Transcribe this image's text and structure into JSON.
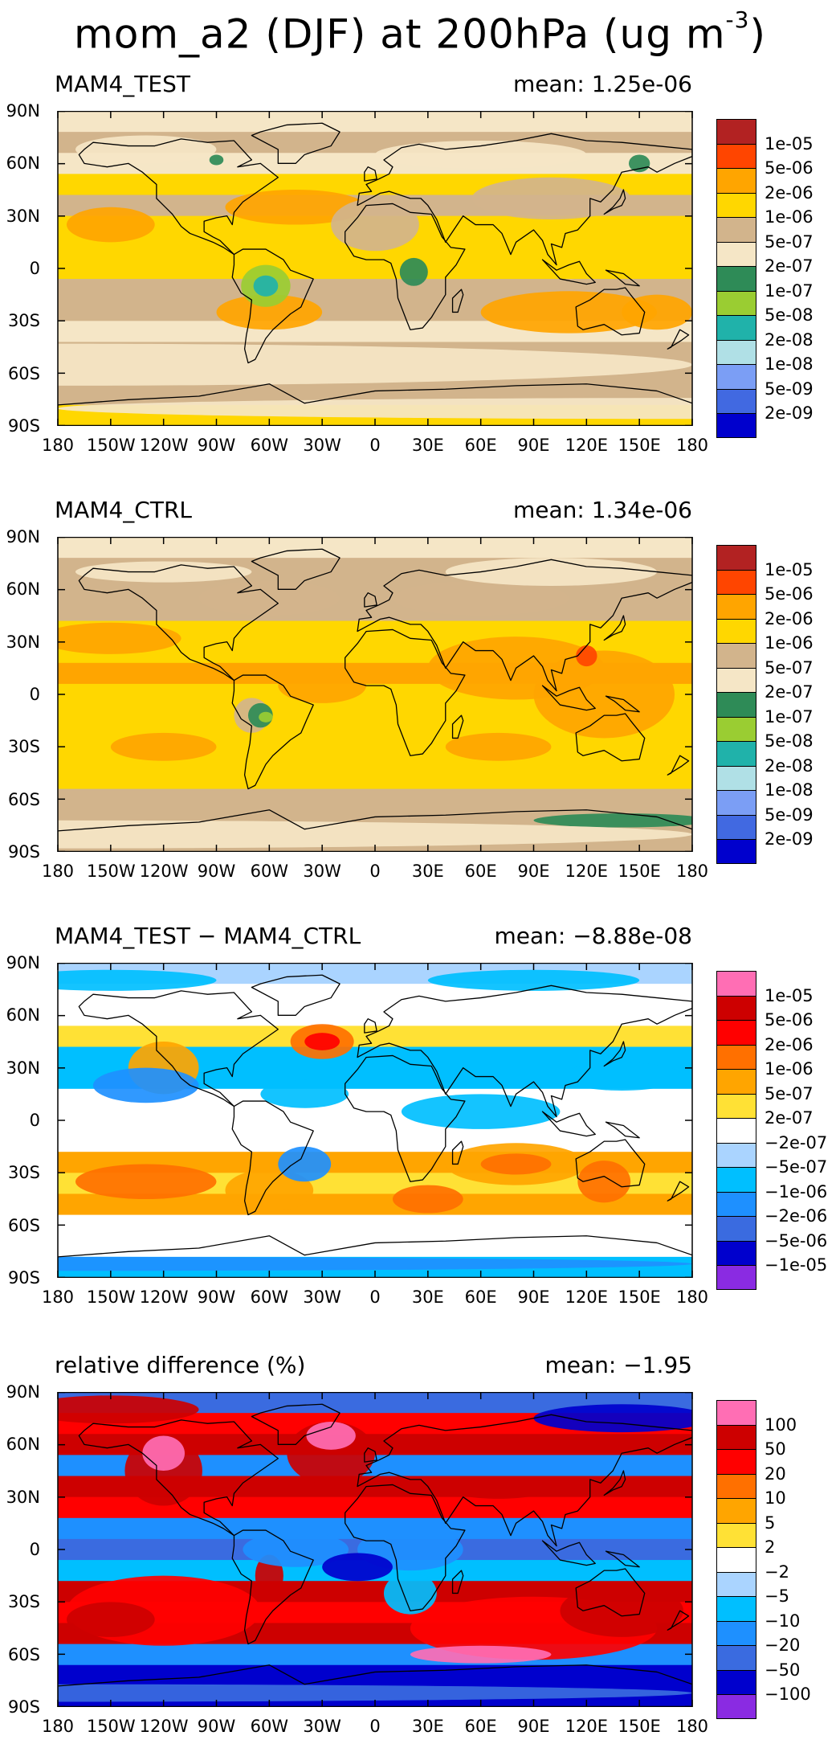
{
  "title": {
    "main": "mom_a2 (DJF) at 200hPa (ug m",
    "sup": "-3",
    "close": ")"
  },
  "axes": {
    "y_ticks": [
      "90N",
      "60N",
      "30N",
      "0",
      "30S",
      "60S",
      "90S"
    ],
    "x_ticks": [
      "180",
      "150W",
      "120W",
      "90W",
      "60W",
      "30W",
      "0",
      "30E",
      "60E",
      "90E",
      "120E",
      "150E",
      "180"
    ]
  },
  "colors": {
    "conc_palette": [
      "#b22222",
      "#ff4500",
      "#ffa500",
      "#ffd700",
      "#d2b48c",
      "#f5e6c6",
      "#2e8b57",
      "#9acd32",
      "#20b2aa",
      "#b0e0e6",
      "#7b9ef5",
      "#4169e1",
      "#0000cd"
    ],
    "diff_palette": [
      "#ff6eb4",
      "#cd0000",
      "#ff0000",
      "#ff7000",
      "#ffa500",
      "#ffe135",
      "#ffffff",
      "#aad4ff",
      "#00bfff",
      "#1e90ff",
      "#3a6be0",
      "#0000cd",
      "#8a2be2"
    ]
  },
  "chart_data": [
    {
      "type": "heatmap",
      "panel": "MAM4_TEST",
      "title": "MAM4_TEST",
      "mean_label": "mean:",
      "mean_value": "1.25e-06",
      "mean": 1.25e-06,
      "xlim": [
        -180,
        180
      ],
      "ylim": [
        -90,
        90
      ],
      "legend_labels": [
        "1e-05",
        "5e-06",
        "2e-06",
        "1e-06",
        "5e-07",
        "2e-07",
        "1e-07",
        "5e-08",
        "2e-08",
        "1e-08",
        "5e-09",
        "2e-09"
      ],
      "zonal_levels": [
        5,
        4,
        5,
        3,
        4,
        3,
        3,
        3,
        4,
        4,
        5,
        4,
        4,
        4,
        3
      ]
    },
    {
      "type": "heatmap",
      "panel": "MAM4_CTRL",
      "title": "MAM4_CTRL",
      "mean_label": "mean:",
      "mean_value": "1.34e-06",
      "mean": 1.34e-06,
      "xlim": [
        -180,
        180
      ],
      "ylim": [
        -90,
        90
      ],
      "legend_labels": [
        "1e-05",
        "5e-06",
        "2e-06",
        "1e-06",
        "5e-07",
        "2e-07",
        "1e-07",
        "5e-08",
        "2e-08",
        "1e-08",
        "5e-09",
        "2e-09"
      ],
      "zonal_levels": [
        5,
        4,
        4,
        4,
        3,
        3,
        2,
        3,
        3,
        3,
        3,
        3,
        4,
        4,
        4
      ]
    },
    {
      "type": "heatmap",
      "panel": "MAM4_TEST - MAM4_CTRL",
      "title": "MAM4_TEST − MAM4_CTRL",
      "mean_label": "mean:",
      "mean_value": "−8.88e-08",
      "mean": -8.88e-08,
      "xlim": [
        -180,
        180
      ],
      "ylim": [
        -90,
        90
      ],
      "legend_labels": [
        "1e-05",
        "5e-06",
        "2e-06",
        "1e-06",
        "5e-07",
        "2e-07",
        "−2e-07",
        "−5e-07",
        "−1e-06",
        "−2e-06",
        "−5e-06",
        "−1e-05"
      ],
      "zonal_levels": [
        7,
        6,
        6,
        5,
        8,
        8,
        6,
        6,
        6,
        4,
        5,
        4,
        6,
        6,
        8
      ]
    },
    {
      "type": "heatmap",
      "panel": "relative difference (%)",
      "title": "relative difference (%)",
      "mean_label": "mean:",
      "mean_value": "−1.95",
      "mean": -1.95,
      "xlim": [
        -180,
        180
      ],
      "ylim": [
        -90,
        90
      ],
      "legend_labels": [
        "100",
        "50",
        "20",
        "10",
        "5",
        "2",
        "−2",
        "−5",
        "−10",
        "−20",
        "−50",
        "−100"
      ],
      "zonal_levels": [
        10,
        2,
        1,
        9,
        1,
        2,
        9,
        10,
        8,
        1,
        2,
        1,
        9,
        11,
        11
      ]
    }
  ]
}
